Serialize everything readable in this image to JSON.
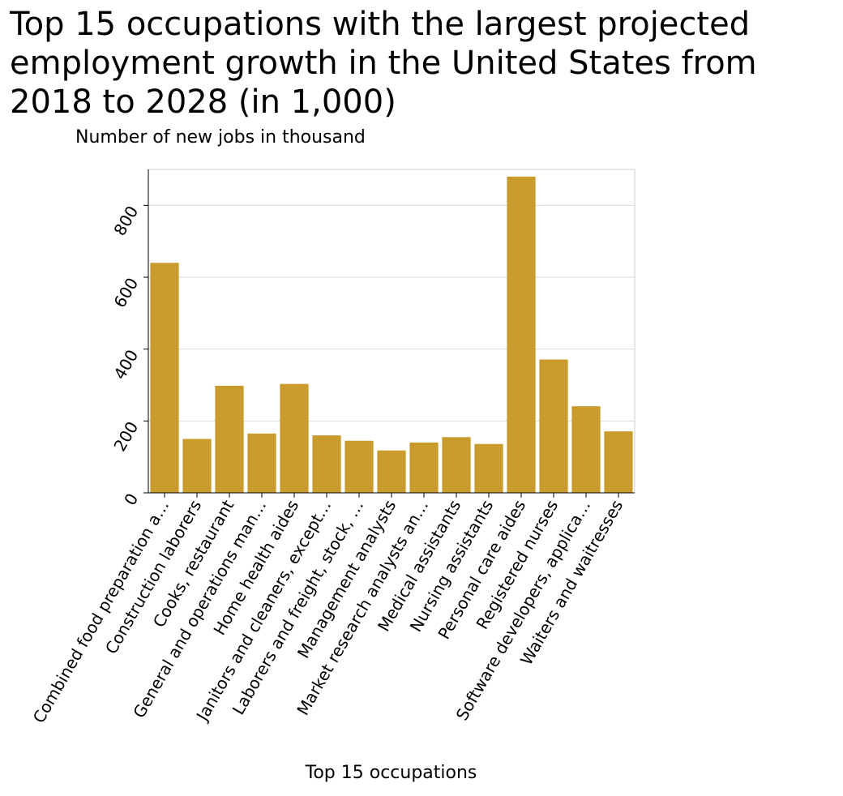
{
  "chart_data": {
    "type": "bar",
    "title": "Top 15 occupations with the largest projected employment growth in the United States from 2018 to 2028 (in 1,000)",
    "xlabel": "Top 15 occupations",
    "ylabel": "Number of new jobs in thousand",
    "ylim": [
      0,
      900
    ],
    "yticks": [
      0,
      200,
      400,
      600,
      800
    ],
    "grid": true,
    "color": "#c89b2b",
    "categories": [
      "Combined food preparation a…",
      "Construction laborers",
      "Cooks, restaurant",
      "General and operations man…",
      "Home health aides",
      "Janitors and cleaners, except…",
      "Laborers and freight, stock, …",
      "Management analysts",
      "Market research analysts an…",
      "Medical assistants",
      "Nursing assistants",
      "Personal care aides",
      "Registered nurses",
      "Software developers, applica…",
      "Waiters and waitresses"
    ],
    "values": [
      640,
      150,
      298,
      165,
      303,
      160,
      145,
      118,
      140,
      155,
      136,
      880,
      371,
      241,
      171
    ]
  }
}
